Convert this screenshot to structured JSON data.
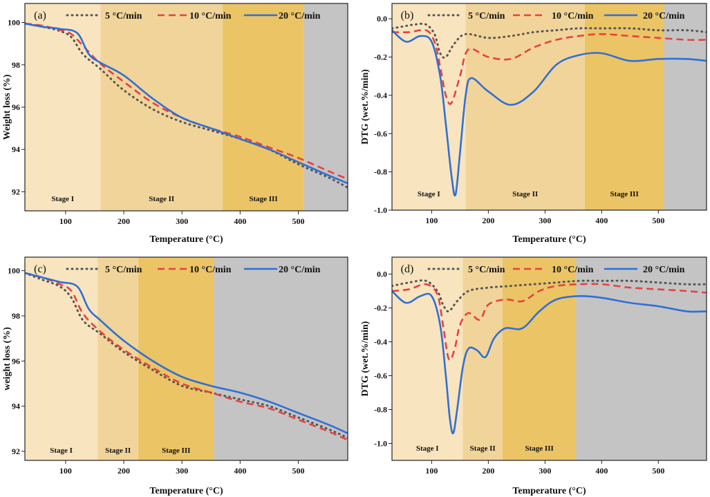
{
  "colors": {
    "stage1": "#f8e4be",
    "stage2": "#f1d499",
    "stage3": "#ebc466",
    "stage4": "#c4c4c4",
    "series_5": "#555555",
    "series_10": "#e84040",
    "series_20": "#2e6fd6"
  },
  "chart_data": [
    {
      "id": "a",
      "type": "line",
      "panel_label": "(a)",
      "xlabel": "Temperature (°C)",
      "ylabel": "Weight loss (%)",
      "xlim": [
        30,
        585
      ],
      "ylim": [
        91.1,
        100.9
      ],
      "xticks": [
        100,
        200,
        300,
        400,
        500
      ],
      "yticks": [
        92,
        94,
        96,
        98,
        100
      ],
      "ytick_labels": [
        "92",
        "94",
        "96",
        "98",
        "100"
      ],
      "stages": [
        {
          "label": "Stage I",
          "from": 30,
          "to": 160
        },
        {
          "label": "Stage II",
          "from": 160,
          "to": 370
        },
        {
          "label": "Stage III",
          "from": 370,
          "to": 510
        },
        {
          "label": "",
          "from": 510,
          "to": 585
        }
      ],
      "legend": [
        "5 °C/min",
        "10 °C/min",
        "20 °C/min"
      ],
      "series": [
        {
          "name": "5 °C/min",
          "style": "dot",
          "x": [
            30,
            60,
            90,
            110,
            130,
            160,
            200,
            250,
            300,
            350,
            400,
            450,
            500,
            550,
            585
          ],
          "y": [
            99.95,
            99.8,
            99.6,
            99.3,
            98.5,
            97.8,
            96.8,
            95.9,
            95.3,
            94.9,
            94.5,
            94.0,
            93.3,
            92.7,
            92.2
          ]
        },
        {
          "name": "10 °C/min",
          "style": "dash",
          "x": [
            30,
            60,
            90,
            110,
            130,
            160,
            200,
            250,
            300,
            350,
            400,
            450,
            500,
            550,
            585
          ],
          "y": [
            99.95,
            99.85,
            99.65,
            99.45,
            98.9,
            98.05,
            97.2,
            96.2,
            95.5,
            95.0,
            94.6,
            94.1,
            93.6,
            93.0,
            92.6
          ]
        },
        {
          "name": "20 °C/min",
          "style": "solid",
          "x": [
            30,
            60,
            90,
            120,
            140,
            160,
            200,
            250,
            300,
            350,
            400,
            450,
            500,
            550,
            585
          ],
          "y": [
            99.95,
            99.8,
            99.7,
            99.5,
            98.5,
            98.1,
            97.5,
            96.4,
            95.5,
            95.0,
            94.5,
            94.0,
            93.4,
            92.8,
            92.4
          ]
        }
      ]
    },
    {
      "id": "b",
      "type": "line",
      "panel_label": "(b)",
      "xlabel": "Temperature (°C)",
      "ylabel": "DTG (wet.%/min)",
      "xlim": [
        30,
        585
      ],
      "ylim": [
        -1.0,
        0.08
      ],
      "xticks": [
        100,
        200,
        300,
        400,
        500
      ],
      "yticks": [
        0.0,
        -0.2,
        -0.4,
        -0.6,
        -0.8,
        -1.0
      ],
      "ytick_labels": [
        "0.0",
        "-0.2",
        "-0.4",
        "-0.6",
        "-0.8",
        "-1.0"
      ],
      "stages": [
        {
          "label": "Stage I",
          "from": 30,
          "to": 160
        },
        {
          "label": "Stage II",
          "from": 160,
          "to": 370
        },
        {
          "label": "Stage III",
          "from": 370,
          "to": 510
        },
        {
          "label": "",
          "from": 510,
          "to": 585
        }
      ],
      "legend": [
        "5 °C/min",
        "10 °C/min",
        "20 °C/min"
      ],
      "series": [
        {
          "name": "5 °C/min",
          "style": "dot",
          "x": [
            30,
            50,
            70,
            90,
            105,
            115,
            125,
            140,
            160,
            200,
            240,
            280,
            320,
            360,
            400,
            450,
            500,
            550,
            585
          ],
          "y": [
            -0.05,
            -0.04,
            -0.03,
            -0.03,
            -0.08,
            -0.18,
            -0.2,
            -0.13,
            -0.08,
            -0.1,
            -0.09,
            -0.07,
            -0.06,
            -0.05,
            -0.05,
            -0.05,
            -0.06,
            -0.06,
            -0.07
          ]
        },
        {
          "name": "10 °C/min",
          "style": "dash",
          "x": [
            30,
            60,
            90,
            105,
            115,
            125,
            135,
            150,
            165,
            200,
            240,
            280,
            320,
            360,
            400,
            450,
            500,
            550,
            585
          ],
          "y": [
            -0.07,
            -0.07,
            -0.06,
            -0.12,
            -0.25,
            -0.4,
            -0.44,
            -0.3,
            -0.16,
            -0.2,
            -0.21,
            -0.15,
            -0.11,
            -0.09,
            -0.08,
            -0.09,
            -0.1,
            -0.11,
            -0.11
          ]
        },
        {
          "name": "20 °C/min",
          "style": "solid",
          "x": [
            30,
            55,
            80,
            100,
            115,
            125,
            135,
            142,
            150,
            160,
            170,
            200,
            240,
            280,
            320,
            360,
            400,
            450,
            500,
            550,
            585
          ],
          "y": [
            -0.06,
            -0.12,
            -0.09,
            -0.12,
            -0.3,
            -0.55,
            -0.82,
            -0.92,
            -0.7,
            -0.4,
            -0.31,
            -0.38,
            -0.45,
            -0.38,
            -0.24,
            -0.19,
            -0.18,
            -0.22,
            -0.21,
            -0.21,
            -0.22
          ]
        }
      ]
    },
    {
      "id": "c",
      "type": "line",
      "panel_label": "(c)",
      "xlabel": "Temperature (°C)",
      "ylabel": "weight loss (%)",
      "xlim": [
        30,
        585
      ],
      "ylim": [
        91.6,
        100.6
      ],
      "xticks": [
        100,
        200,
        300,
        400,
        500
      ],
      "yticks": [
        92,
        94,
        96,
        98,
        100
      ],
      "ytick_labels": [
        "92",
        "94",
        "96",
        "98",
        "100"
      ],
      "stages": [
        {
          "label": "Stage I",
          "from": 30,
          "to": 155
        },
        {
          "label": "Stage II",
          "from": 155,
          "to": 225
        },
        {
          "label": "Stage III",
          "from": 225,
          "to": 355
        },
        {
          "label": "",
          "from": 355,
          "to": 585
        }
      ],
      "legend": [
        "5 °C/min",
        "10 °C/min",
        "20 °C/min"
      ],
      "series": [
        {
          "name": "5 °C/min",
          "style": "dot",
          "x": [
            30,
            60,
            90,
            110,
            130,
            160,
            200,
            250,
            300,
            350,
            400,
            450,
            500,
            550,
            585
          ],
          "y": [
            99.9,
            99.6,
            99.3,
            98.8,
            97.8,
            97.2,
            96.4,
            95.6,
            94.9,
            94.6,
            94.3,
            94.0,
            93.5,
            93.0,
            92.6
          ]
        },
        {
          "name": "10 °C/min",
          "style": "dash",
          "x": [
            30,
            60,
            90,
            110,
            130,
            160,
            200,
            250,
            300,
            350,
            400,
            450,
            500,
            550,
            585
          ],
          "y": [
            99.9,
            99.7,
            99.4,
            99.1,
            98.1,
            97.3,
            96.5,
            95.7,
            95.0,
            94.6,
            94.2,
            93.9,
            93.4,
            92.9,
            92.5
          ]
        },
        {
          "name": "20 °C/min",
          "style": "solid",
          "x": [
            30,
            60,
            90,
            120,
            140,
            160,
            200,
            250,
            300,
            350,
            400,
            450,
            500,
            550,
            585
          ],
          "y": [
            99.9,
            99.7,
            99.5,
            99.3,
            98.3,
            97.8,
            96.9,
            96.0,
            95.3,
            94.9,
            94.6,
            94.2,
            93.7,
            93.2,
            92.8
          ]
        }
      ]
    },
    {
      "id": "d",
      "type": "line",
      "panel_label": "(d)",
      "xlabel": "Temperature (°C)",
      "ylabel": "DTG (wet.%/min)",
      "xlim": [
        30,
        585
      ],
      "ylim": [
        -1.1,
        0.1
      ],
      "xticks": [
        100,
        200,
        300,
        400,
        500
      ],
      "yticks": [
        0.0,
        -0.2,
        -0.4,
        -0.6,
        -0.8,
        -1.0
      ],
      "ytick_labels": [
        "0.0",
        "-0.2",
        "-0.4",
        "-0.6",
        "-0.8",
        "-1.0"
      ],
      "stages": [
        {
          "label": "Stage I",
          "from": 30,
          "to": 155
        },
        {
          "label": "Stage II",
          "from": 155,
          "to": 225
        },
        {
          "label": "Stage III",
          "from": 225,
          "to": 355
        },
        {
          "label": "",
          "from": 355,
          "to": 585
        }
      ],
      "legend": [
        "5 °C/min",
        "10 °C/min",
        "20 °C/min"
      ],
      "series": [
        {
          "name": "5 °C/min",
          "style": "dot",
          "x": [
            30,
            60,
            90,
            110,
            120,
            130,
            145,
            165,
            200,
            240,
            280,
            320,
            360,
            400,
            450,
            500,
            550,
            585
          ],
          "y": [
            -0.07,
            -0.05,
            -0.04,
            -0.1,
            -0.18,
            -0.22,
            -0.16,
            -0.1,
            -0.08,
            -0.07,
            -0.06,
            -0.05,
            -0.04,
            -0.04,
            -0.04,
            -0.05,
            -0.06,
            -0.06
          ]
        },
        {
          "name": "10 °C/min",
          "style": "dash",
          "x": [
            30,
            60,
            90,
            110,
            120,
            130,
            140,
            150,
            165,
            185,
            200,
            230,
            260,
            290,
            320,
            360,
            400,
            450,
            500,
            550,
            585
          ],
          "y": [
            -0.1,
            -0.09,
            -0.06,
            -0.12,
            -0.3,
            -0.5,
            -0.45,
            -0.3,
            -0.23,
            -0.27,
            -0.18,
            -0.15,
            -0.16,
            -0.1,
            -0.07,
            -0.06,
            -0.06,
            -0.08,
            -0.09,
            -0.1,
            -0.11
          ]
        },
        {
          "name": "20 °C/min",
          "style": "solid",
          "x": [
            30,
            55,
            80,
            100,
            115,
            125,
            132,
            138,
            145,
            155,
            165,
            180,
            195,
            210,
            230,
            260,
            290,
            320,
            360,
            400,
            450,
            500,
            550,
            585
          ],
          "y": [
            -0.1,
            -0.17,
            -0.13,
            -0.13,
            -0.3,
            -0.6,
            -0.85,
            -0.94,
            -0.8,
            -0.55,
            -0.44,
            -0.45,
            -0.49,
            -0.38,
            -0.32,
            -0.32,
            -0.22,
            -0.15,
            -0.13,
            -0.14,
            -0.17,
            -0.19,
            -0.22,
            -0.22
          ]
        }
      ]
    }
  ]
}
